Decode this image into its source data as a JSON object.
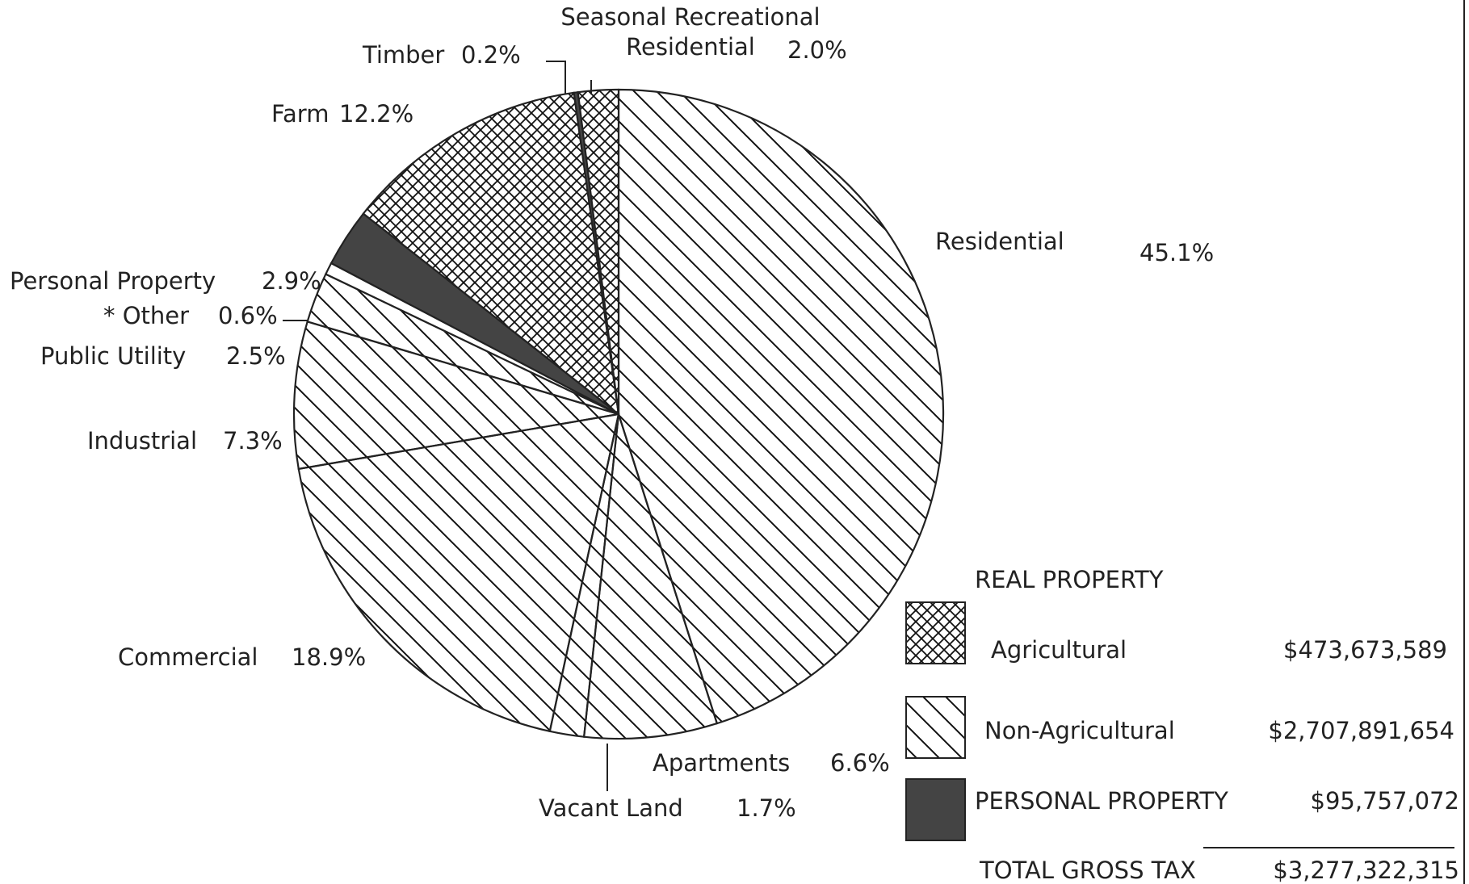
{
  "chart_data": {
    "type": "pie",
    "categories": [
      "Residential",
      "Apartments",
      "Vacant Land",
      "Commercial",
      "Industrial",
      "Public Utility",
      "* Other",
      "Personal Property",
      "Farm",
      "Timber",
      "Seasonal Recreational Residential"
    ],
    "values": [
      45.1,
      6.6,
      1.7,
      18.9,
      7.3,
      2.5,
      0.6,
      2.9,
      12.2,
      0.2,
      2.0
    ],
    "value_labels": [
      "45.1%",
      "6.6%",
      "1.7%",
      "18.9%",
      "7.3%",
      "2.5%",
      "0.6%",
      "2.9%",
      "12.2%",
      "0.2%",
      "2.0%"
    ],
    "patterns": [
      "diagonal",
      "diagonal",
      "diagonal",
      "diagonal",
      "diagonal",
      "diagonal",
      "none",
      "solid",
      "cross",
      "solid",
      "cross"
    ],
    "legend": {
      "heading": "REAL PROPERTY",
      "items": [
        {
          "name": "Agricultural",
          "pattern": "cross",
          "amount": "$473,673,589"
        },
        {
          "name": "Non-Agricultural",
          "pattern": "diagonal",
          "amount": "$2,707,891,654"
        },
        {
          "name": "PERSONAL PROPERTY",
          "pattern": "solid",
          "amount": "$95,757,072"
        }
      ],
      "total": {
        "name": "TOTAL GROSS TAX",
        "amount": "$3,277,322,315"
      }
    }
  }
}
